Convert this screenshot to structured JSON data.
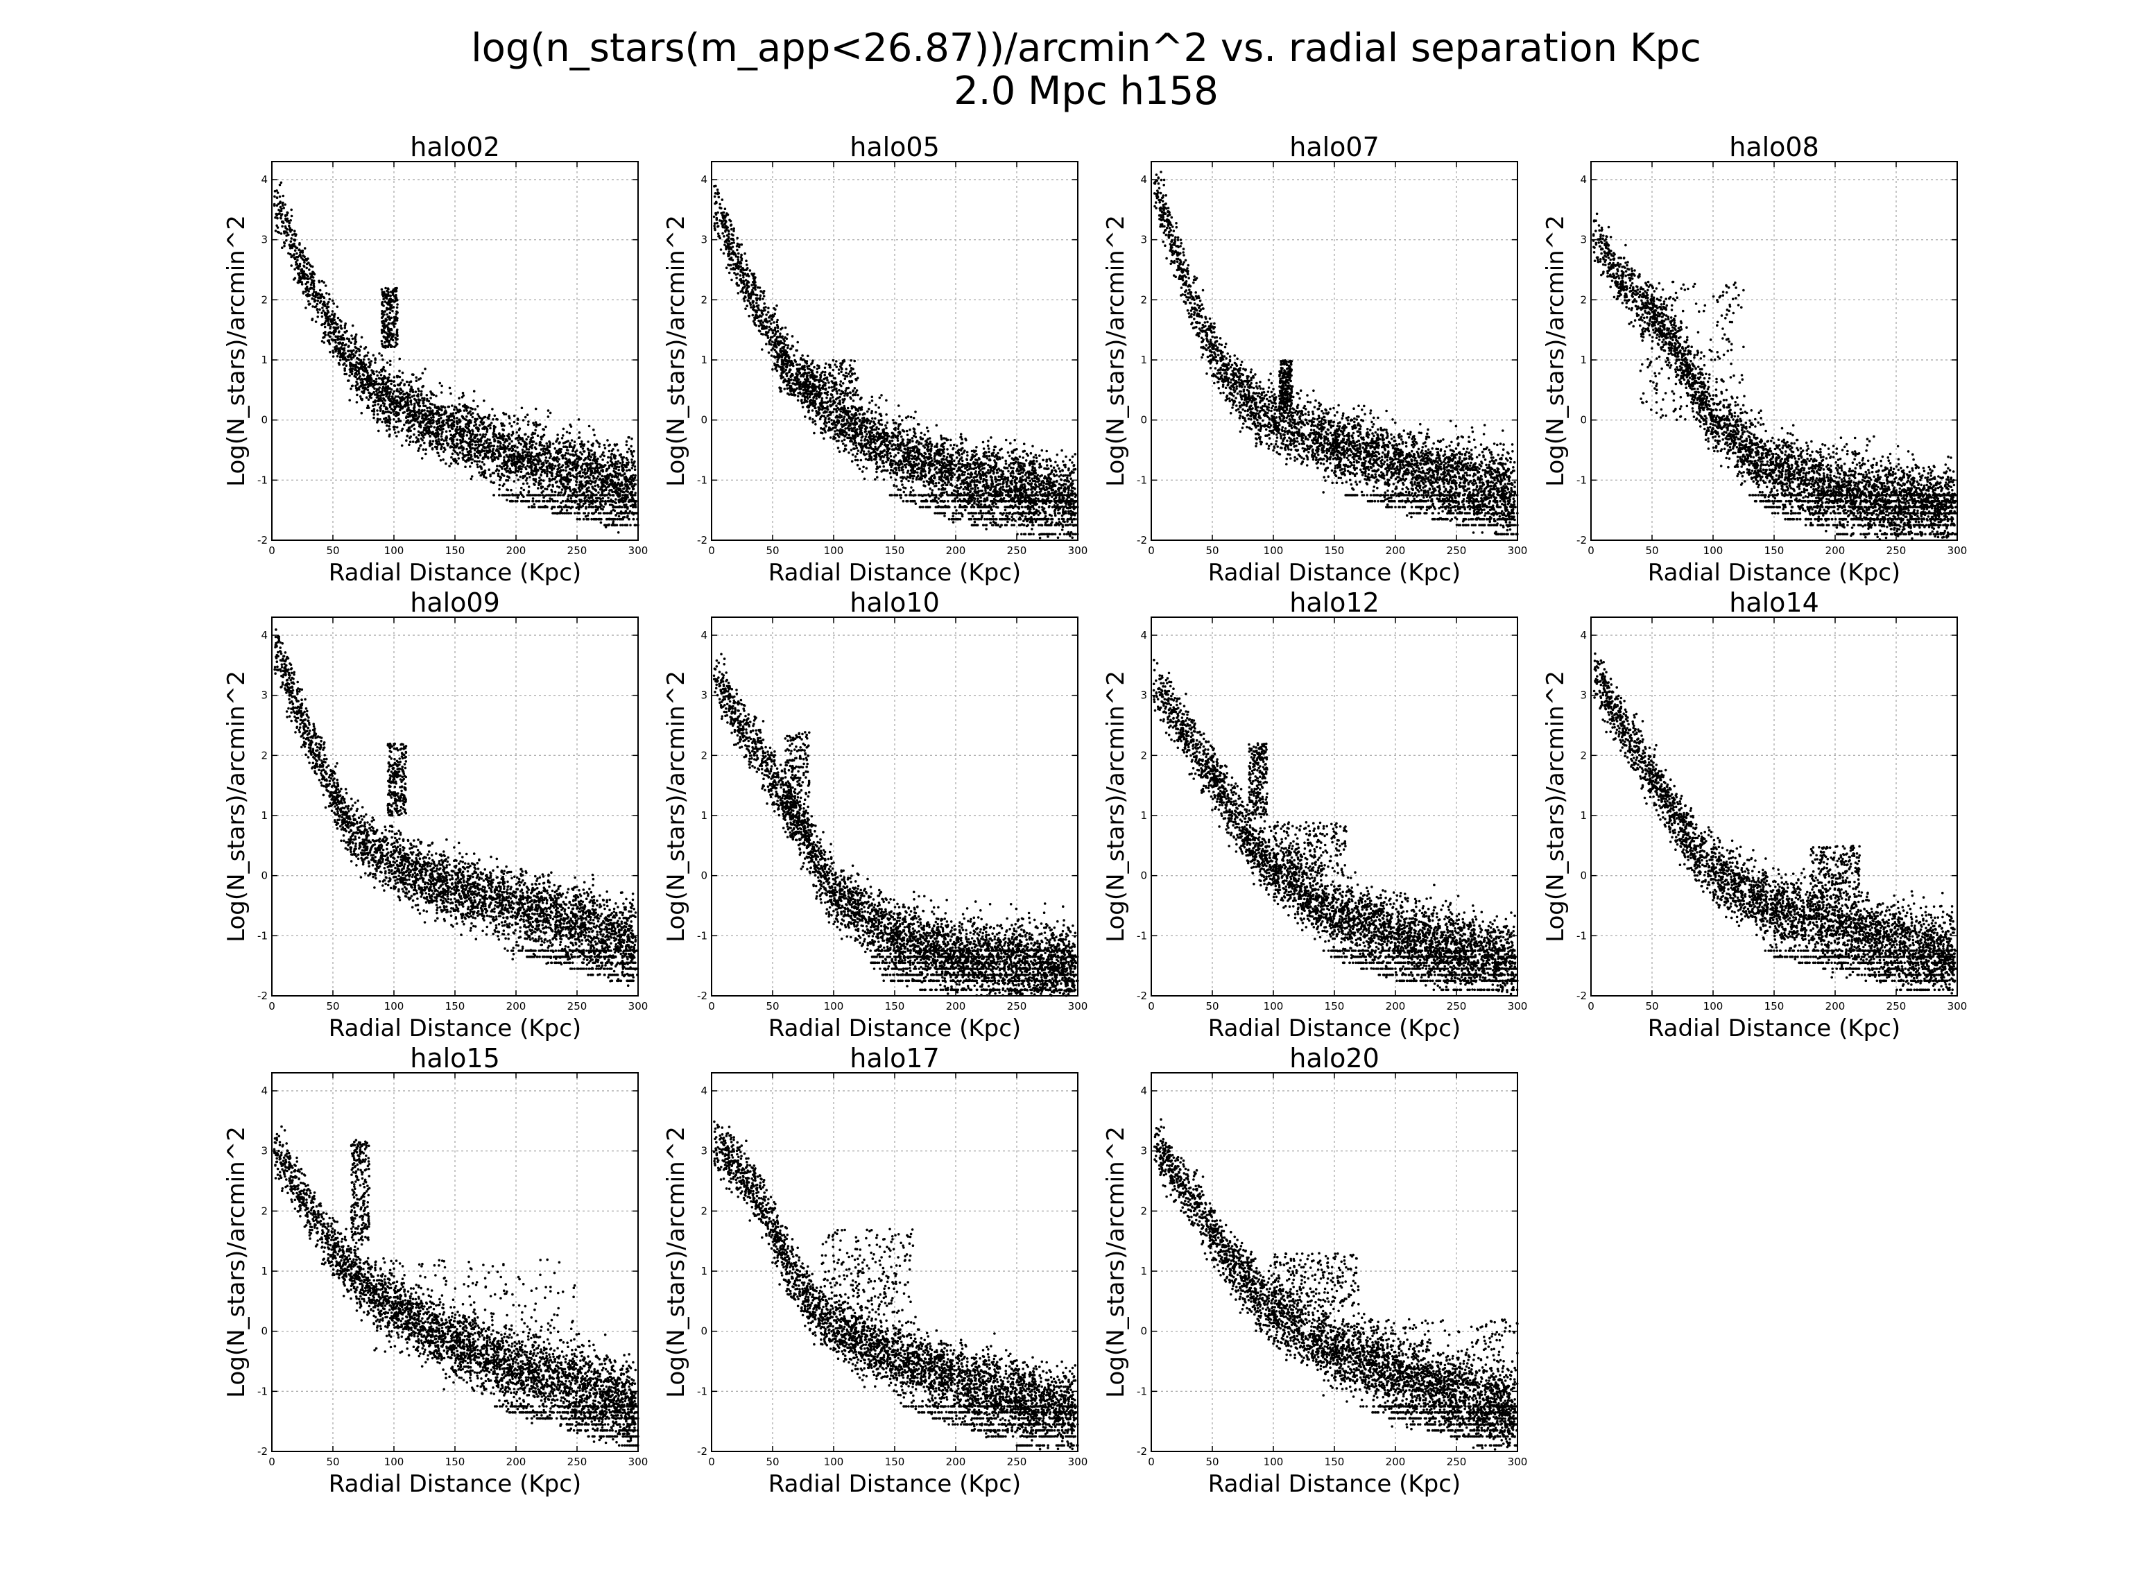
{
  "figure": {
    "title_line1": "log(n_stars(m_app<26.87))/arcmin^2 vs. radial separation Kpc",
    "title_line2": "2.0 Mpc  h158"
  },
  "chart_data": [
    {
      "type": "scatter",
      "title": "halo02",
      "xlabel": "Radial Distance (Kpc)",
      "ylabel": "Log(N_stars)/arcmin^2",
      "xlim": [
        0,
        300
      ],
      "ylim": [
        -2,
        4.3
      ],
      "xticks": [
        0,
        50,
        100,
        150,
        200,
        250,
        300
      ],
      "yticks": [
        -2,
        -1,
        0,
        1,
        2,
        3,
        4
      ],
      "grid": true,
      "marker_color": "#000000",
      "trend": [
        [
          5,
          3.6
        ],
        [
          20,
          2.7
        ],
        [
          40,
          1.9
        ],
        [
          60,
          1.1
        ],
        [
          80,
          0.6
        ],
        [
          100,
          0.3
        ],
        [
          150,
          -0.2
        ],
        [
          200,
          -0.6
        ],
        [
          250,
          -0.85
        ],
        [
          300,
          -1.1
        ]
      ],
      "features": [
        {
          "x": [
            90,
            103
          ],
          "y": [
            1.2,
            2.2
          ]
        }
      ]
    },
    {
      "type": "scatter",
      "title": "halo05",
      "xlabel": "Radial Distance (Kpc)",
      "ylabel": "Log(N_stars)/arcmin^2",
      "xlim": [
        0,
        300
      ],
      "ylim": [
        -2,
        4.3
      ],
      "xticks": [
        0,
        50,
        100,
        150,
        200,
        250,
        300
      ],
      "yticks": [
        -2,
        -1,
        0,
        1,
        2,
        3,
        4
      ],
      "grid": true,
      "marker_color": "#000000",
      "trend": [
        [
          5,
          3.5
        ],
        [
          20,
          2.6
        ],
        [
          40,
          1.8
        ],
        [
          60,
          1.0
        ],
        [
          80,
          0.5
        ],
        [
          100,
          0.1
        ],
        [
          150,
          -0.5
        ],
        [
          200,
          -0.9
        ],
        [
          250,
          -1.1
        ],
        [
          300,
          -1.3
        ]
      ],
      "features": [
        {
          "x": [
            55,
            120
          ],
          "y": [
            0.4,
            1.0
          ]
        }
      ]
    },
    {
      "type": "scatter",
      "title": "halo07",
      "xlabel": "Radial Distance (Kpc)",
      "ylabel": "Log(N_stars)/arcmin^2",
      "xlim": [
        0,
        300
      ],
      "ylim": [
        -2,
        4.3
      ],
      "xticks": [
        0,
        50,
        100,
        150,
        200,
        250,
        300
      ],
      "yticks": [
        -2,
        -1,
        0,
        1,
        2,
        3,
        4
      ],
      "grid": true,
      "marker_color": "#000000",
      "trend": [
        [
          5,
          3.8
        ],
        [
          20,
          2.8
        ],
        [
          40,
          1.6
        ],
        [
          60,
          0.8
        ],
        [
          80,
          0.3
        ],
        [
          100,
          0.0
        ],
        [
          150,
          -0.4
        ],
        [
          200,
          -0.7
        ],
        [
          250,
          -0.95
        ],
        [
          300,
          -1.2
        ]
      ],
      "features": [
        {
          "x": [
            105,
            115
          ],
          "y": [
            0.2,
            1.0
          ]
        }
      ]
    },
    {
      "type": "scatter",
      "title": "halo08",
      "xlabel": "Radial Distance (Kpc)",
      "ylabel": "Log(N_stars)/arcmin^2",
      "xlim": [
        0,
        300
      ],
      "ylim": [
        -2,
        4.3
      ],
      "xticks": [
        0,
        50,
        100,
        150,
        200,
        250,
        300
      ],
      "yticks": [
        -2,
        -1,
        0,
        1,
        2,
        3,
        4
      ],
      "grid": true,
      "marker_color": "#000000",
      "trend": [
        [
          5,
          3.1
        ],
        [
          20,
          2.4
        ],
        [
          40,
          2.0
        ],
        [
          60,
          1.5
        ],
        [
          80,
          0.8
        ],
        [
          100,
          0.0
        ],
        [
          150,
          -0.8
        ],
        [
          200,
          -1.1
        ],
        [
          250,
          -1.3
        ],
        [
          300,
          -1.4
        ]
      ],
      "features": [
        {
          "x": [
            40,
            125
          ],
          "y": [
            0.0,
            2.3
          ]
        }
      ]
    },
    {
      "type": "scatter",
      "title": "halo09",
      "xlabel": "Radial Distance (Kpc)",
      "ylabel": "Log(N_stars)/arcmin^2",
      "xlim": [
        0,
        300
      ],
      "ylim": [
        -2,
        4.3
      ],
      "xticks": [
        0,
        50,
        100,
        150,
        200,
        250,
        300
      ],
      "yticks": [
        -2,
        -1,
        0,
        1,
        2,
        3,
        4
      ],
      "grid": true,
      "marker_color": "#000000",
      "trend": [
        [
          5,
          3.7
        ],
        [
          20,
          2.8
        ],
        [
          40,
          1.9
        ],
        [
          60,
          0.9
        ],
        [
          80,
          0.5
        ],
        [
          100,
          0.2
        ],
        [
          150,
          -0.2
        ],
        [
          200,
          -0.5
        ],
        [
          250,
          -0.8
        ],
        [
          300,
          -1.1
        ]
      ],
      "features": [
        {
          "x": [
            95,
            110
          ],
          "y": [
            1.0,
            2.2
          ]
        }
      ]
    },
    {
      "type": "scatter",
      "title": "halo10",
      "xlabel": "Radial Distance (Kpc)",
      "ylabel": "Log(N_stars)/arcmin^2",
      "xlim": [
        0,
        300
      ],
      "ylim": [
        -2,
        4.3
      ],
      "xticks": [
        0,
        50,
        100,
        150,
        200,
        250,
        300
      ],
      "yticks": [
        -2,
        -1,
        0,
        1,
        2,
        3,
        4
      ],
      "grid": true,
      "marker_color": "#000000",
      "trend": [
        [
          5,
          3.3
        ],
        [
          20,
          2.6
        ],
        [
          40,
          2.0
        ],
        [
          60,
          1.3
        ],
        [
          80,
          0.5
        ],
        [
          100,
          -0.3
        ],
        [
          150,
          -1.0
        ],
        [
          200,
          -1.25
        ],
        [
          250,
          -1.4
        ],
        [
          300,
          -1.5
        ]
      ],
      "features": [
        {
          "x": [
            60,
            80
          ],
          "y": [
            0.6,
            2.4
          ]
        }
      ]
    },
    {
      "type": "scatter",
      "title": "halo12",
      "xlabel": "Radial Distance (Kpc)",
      "ylabel": "Log(N_stars)/arcmin^2",
      "xlim": [
        0,
        300
      ],
      "ylim": [
        -2,
        4.3
      ],
      "xticks": [
        0,
        50,
        100,
        150,
        200,
        250,
        300
      ],
      "yticks": [
        -2,
        -1,
        0,
        1,
        2,
        3,
        4
      ],
      "grid": true,
      "marker_color": "#000000",
      "trend": [
        [
          5,
          3.2
        ],
        [
          20,
          2.6
        ],
        [
          40,
          2.0
        ],
        [
          60,
          1.3
        ],
        [
          80,
          0.6
        ],
        [
          100,
          0.1
        ],
        [
          150,
          -0.6
        ],
        [
          200,
          -0.95
        ],
        [
          250,
          -1.2
        ],
        [
          300,
          -1.4
        ]
      ],
      "features": [
        {
          "x": [
            80,
            95
          ],
          "y": [
            1.0,
            2.2
          ]
        },
        {
          "x": [
            100,
            160
          ],
          "y": [
            0.0,
            0.9
          ]
        }
      ]
    },
    {
      "type": "scatter",
      "title": "halo14",
      "xlabel": "Radial Distance (Kpc)",
      "ylabel": "Log(N_stars)/arcmin^2",
      "xlim": [
        0,
        300
      ],
      "ylim": [
        -2,
        4.3
      ],
      "xticks": [
        0,
        50,
        100,
        150,
        200,
        250,
        300
      ],
      "yticks": [
        -2,
        -1,
        0,
        1,
        2,
        3,
        4
      ],
      "grid": true,
      "marker_color": "#000000",
      "trend": [
        [
          5,
          3.3
        ],
        [
          20,
          2.7
        ],
        [
          40,
          2.0
        ],
        [
          60,
          1.3
        ],
        [
          80,
          0.6
        ],
        [
          100,
          0.1
        ],
        [
          150,
          -0.55
        ],
        [
          200,
          -0.8
        ],
        [
          250,
          -1.1
        ],
        [
          300,
          -1.3
        ]
      ],
      "features": [
        {
          "x": [
            180,
            220
          ],
          "y": [
            -0.4,
            0.5
          ]
        }
      ]
    },
    {
      "type": "scatter",
      "title": "halo15",
      "xlabel": "Radial Distance (Kpc)",
      "ylabel": "Log(N_stars)/arcmin^2",
      "xlim": [
        0,
        300
      ],
      "ylim": [
        -2,
        4.3
      ],
      "xticks": [
        0,
        50,
        100,
        150,
        200,
        250,
        300
      ],
      "yticks": [
        -2,
        -1,
        0,
        1,
        2,
        3,
        4
      ],
      "grid": true,
      "marker_color": "#000000",
      "trend": [
        [
          5,
          3.0
        ],
        [
          20,
          2.4
        ],
        [
          40,
          1.7
        ],
        [
          60,
          1.1
        ],
        [
          80,
          0.7
        ],
        [
          100,
          0.4
        ],
        [
          150,
          -0.2
        ],
        [
          200,
          -0.6
        ],
        [
          250,
          -0.9
        ],
        [
          300,
          -1.2
        ]
      ],
      "features": [
        {
          "x": [
            65,
            80
          ],
          "y": [
            1.5,
            3.2
          ]
        },
        {
          "x": [
            80,
            250
          ],
          "y": [
            -0.5,
            1.2
          ]
        }
      ]
    },
    {
      "type": "scatter",
      "title": "halo17",
      "xlabel": "Radial Distance (Kpc)",
      "ylabel": "Log(N_stars)/arcmin^2",
      "xlim": [
        0,
        300
      ],
      "ylim": [
        -2,
        4.3
      ],
      "xticks": [
        0,
        50,
        100,
        150,
        200,
        250,
        300
      ],
      "yticks": [
        -2,
        -1,
        0,
        1,
        2,
        3,
        4
      ],
      "grid": true,
      "marker_color": "#000000",
      "trend": [
        [
          5,
          3.1
        ],
        [
          20,
          2.7
        ],
        [
          40,
          2.2
        ],
        [
          60,
          1.2
        ],
        [
          80,
          0.5
        ],
        [
          100,
          0.1
        ],
        [
          150,
          -0.4
        ],
        [
          200,
          -0.8
        ],
        [
          250,
          -1.1
        ],
        [
          300,
          -1.3
        ]
      ],
      "features": [
        {
          "x": [
            90,
            165
          ],
          "y": [
            0.3,
            1.7
          ]
        }
      ]
    },
    {
      "type": "scatter",
      "title": "halo20",
      "xlabel": "Radial Distance (Kpc)",
      "ylabel": "Log(N_stars)/arcmin^2",
      "xlim": [
        0,
        300
      ],
      "ylim": [
        -2,
        4.3
      ],
      "xticks": [
        0,
        50,
        100,
        150,
        200,
        250,
        300
      ],
      "yticks": [
        -2,
        -1,
        0,
        1,
        2,
        3,
        4
      ],
      "grid": true,
      "marker_color": "#000000",
      "trend": [
        [
          5,
          3.1
        ],
        [
          20,
          2.6
        ],
        [
          40,
          2.0
        ],
        [
          60,
          1.3
        ],
        [
          80,
          0.8
        ],
        [
          100,
          0.3
        ],
        [
          150,
          -0.3
        ],
        [
          200,
          -0.7
        ],
        [
          250,
          -1.0
        ],
        [
          300,
          -1.3
        ]
      ],
      "features": [
        {
          "x": [
            100,
            170
          ],
          "y": [
            0.4,
            1.3
          ]
        },
        {
          "x": [
            170,
            300
          ],
          "y": [
            -1.0,
            0.2
          ]
        }
      ]
    }
  ]
}
